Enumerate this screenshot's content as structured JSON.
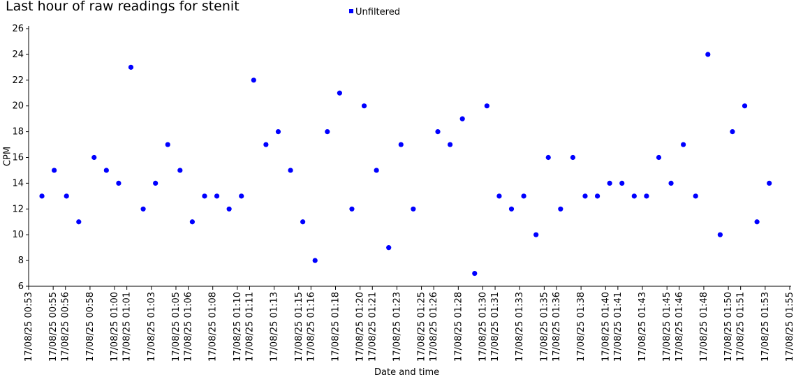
{
  "chart_data": {
    "type": "scatter",
    "title": "Last hour of raw readings for stenit",
    "xlabel": "Date and time",
    "ylabel": "CPM",
    "ylim": [
      6,
      26
    ],
    "yticks": [
      "6",
      "8",
      "10",
      "12",
      "14",
      "16",
      "18",
      "20",
      "22",
      "24",
      "26"
    ],
    "xlim": [
      "17/08/25 00:53",
      "17/08/25 01:55"
    ],
    "xtick_labels": [
      "17/08/25 00:53",
      "17/08/25 00:55",
      "17/08/25 00:56",
      "17/08/25 00:58",
      "17/08/25 01:00",
      "17/08/25 01:01",
      "17/08/25 01:03",
      "17/08/25 01:05",
      "17/08/25 01:06",
      "17/08/25 01:08",
      "17/08/25 01:10",
      "17/08/25 01:11",
      "17/08/25 01:13",
      "17/08/25 01:15",
      "17/08/25 01:16",
      "17/08/25 01:18",
      "17/08/25 01:20",
      "17/08/25 01:21",
      "17/08/25 01:23",
      "17/08/25 01:25",
      "17/08/25 01:26",
      "17/08/25 01:28",
      "17/08/25 01:30",
      "17/08/25 01:31",
      "17/08/25 01:33",
      "17/08/25 01:35",
      "17/08/25 01:36",
      "17/08/25 01:38",
      "17/08/25 01:40",
      "17/08/25 01:41",
      "17/08/25 01:43",
      "17/08/25 01:45",
      "17/08/25 01:46",
      "17/08/25 01:48",
      "17/08/25 01:50",
      "17/08/25 01:51",
      "17/08/25 01:53",
      "17/08/25 01:55"
    ],
    "grid": false,
    "legend": "top-center",
    "series": [
      {
        "name": "Unfiltered",
        "color": "#0000ff",
        "points": [
          {
            "x": "17/08/25 00:54:05",
            "y": 13
          },
          {
            "x": "17/08/25 00:55:05",
            "y": 15
          },
          {
            "x": "17/08/25 00:56:05",
            "y": 13
          },
          {
            "x": "17/08/25 00:57:05",
            "y": 11
          },
          {
            "x": "17/08/25 00:58:20",
            "y": 16
          },
          {
            "x": "17/08/25 00:59:20",
            "y": 15
          },
          {
            "x": "17/08/25 01:00:20",
            "y": 14
          },
          {
            "x": "17/08/25 01:01:20",
            "y": 23
          },
          {
            "x": "17/08/25 01:02:20",
            "y": 12
          },
          {
            "x": "17/08/25 01:03:20",
            "y": 14
          },
          {
            "x": "17/08/25 01:04:20",
            "y": 17
          },
          {
            "x": "17/08/25 01:05:20",
            "y": 15
          },
          {
            "x": "17/08/25 01:06:20",
            "y": 11
          },
          {
            "x": "17/08/25 01:07:20",
            "y": 13
          },
          {
            "x": "17/08/25 01:08:20",
            "y": 13
          },
          {
            "x": "17/08/25 01:09:20",
            "y": 12
          },
          {
            "x": "17/08/25 01:10:20",
            "y": 13
          },
          {
            "x": "17/08/25 01:11:20",
            "y": 22
          },
          {
            "x": "17/08/25 01:12:20",
            "y": 17
          },
          {
            "x": "17/08/25 01:13:20",
            "y": 18
          },
          {
            "x": "17/08/25 01:14:20",
            "y": 15
          },
          {
            "x": "17/08/25 01:15:20",
            "y": 11
          },
          {
            "x": "17/08/25 01:16:20",
            "y": 8
          },
          {
            "x": "17/08/25 01:17:20",
            "y": 18
          },
          {
            "x": "17/08/25 01:18:20",
            "y": 21
          },
          {
            "x": "17/08/25 01:19:20",
            "y": 12
          },
          {
            "x": "17/08/25 01:20:20",
            "y": 20
          },
          {
            "x": "17/08/25 01:21:20",
            "y": 15
          },
          {
            "x": "17/08/25 01:22:20",
            "y": 9
          },
          {
            "x": "17/08/25 01:23:20",
            "y": 17
          },
          {
            "x": "17/08/25 01:24:20",
            "y": 12
          },
          {
            "x": "17/08/25 01:26:20",
            "y": 18
          },
          {
            "x": "17/08/25 01:27:20",
            "y": 17
          },
          {
            "x": "17/08/25 01:28:20",
            "y": 19
          },
          {
            "x": "17/08/25 01:29:20",
            "y": 7
          },
          {
            "x": "17/08/25 01:30:20",
            "y": 20
          },
          {
            "x": "17/08/25 01:31:20",
            "y": 13
          },
          {
            "x": "17/08/25 01:32:20",
            "y": 12
          },
          {
            "x": "17/08/25 01:33:20",
            "y": 13
          },
          {
            "x": "17/08/25 01:34:20",
            "y": 10
          },
          {
            "x": "17/08/25 01:35:20",
            "y": 16
          },
          {
            "x": "17/08/25 01:36:20",
            "y": 12
          },
          {
            "x": "17/08/25 01:37:20",
            "y": 16
          },
          {
            "x": "17/08/25 01:38:20",
            "y": 13
          },
          {
            "x": "17/08/25 01:39:20",
            "y": 13
          },
          {
            "x": "17/08/25 01:40:20",
            "y": 14
          },
          {
            "x": "17/08/25 01:41:20",
            "y": 14
          },
          {
            "x": "17/08/25 01:42:20",
            "y": 13
          },
          {
            "x": "17/08/25 01:43:20",
            "y": 13
          },
          {
            "x": "17/08/25 01:44:20",
            "y": 16
          },
          {
            "x": "17/08/25 01:45:20",
            "y": 14
          },
          {
            "x": "17/08/25 01:46:20",
            "y": 17
          },
          {
            "x": "17/08/25 01:47:20",
            "y": 13
          },
          {
            "x": "17/08/25 01:48:20",
            "y": 24
          },
          {
            "x": "17/08/25 01:49:20",
            "y": 10
          },
          {
            "x": "17/08/25 01:50:20",
            "y": 18
          },
          {
            "x": "17/08/25 01:51:20",
            "y": 20
          },
          {
            "x": "17/08/25 01:52:20",
            "y": 11
          },
          {
            "x": "17/08/25 01:53:20",
            "y": 14
          }
        ]
      }
    ]
  }
}
